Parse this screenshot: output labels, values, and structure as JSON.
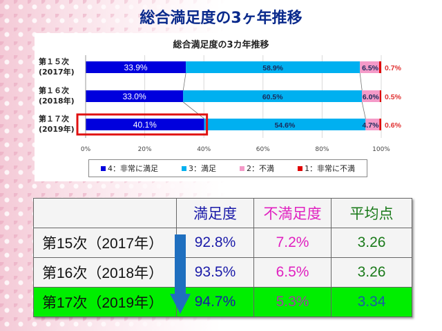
{
  "page_title": "総合満足度の3ヶ年推移",
  "colors": {
    "very_satisfied": "#0000dd",
    "satisfied": "#00b0f0",
    "dissatisfied": "#f49ac8",
    "very_dissatisfied": "#e00000"
  },
  "chart_data": {
    "type": "bar",
    "stacked": true,
    "orientation": "horizontal",
    "title": "総合満足度の3カ年推移",
    "categories": [
      "第１５次\n(2017年)",
      "第１６次\n(2018年)",
      "第１７次\n(2019年)"
    ],
    "category_lines": [
      [
        "第１５次",
        "(2017年)"
      ],
      [
        "第１６次",
        "(2018年)"
      ],
      [
        "第１７次",
        "(2019年)"
      ]
    ],
    "series": [
      {
        "name": "4：非常に満足",
        "values": [
          33.9,
          33.0,
          40.1
        ],
        "labels": [
          "33.9%",
          "33.0%",
          "40.1%"
        ]
      },
      {
        "name": "3：満足",
        "values": [
          58.9,
          60.5,
          54.6
        ],
        "labels": [
          "58.9%",
          "60.5%",
          "54.6%"
        ]
      },
      {
        "name": "2：不満",
        "values": [
          6.5,
          6.0,
          4.7
        ],
        "labels": [
          "6.5%",
          "6.0%",
          "4.7%"
        ]
      },
      {
        "name": "1：非常に不満",
        "values": [
          0.7,
          0.5,
          0.6
        ],
        "labels": [
          "0.7%",
          "0.5%",
          "0.6%"
        ]
      }
    ],
    "xticks": [
      "0%",
      "20%",
      "40%",
      "60%",
      "80%",
      "100%"
    ],
    "xlim": [
      0,
      100
    ],
    "legend": "bottom",
    "highlight_category": 2
  },
  "table": {
    "headers": [
      "",
      "満足度",
      "不満足度",
      "平均点"
    ],
    "rows": [
      {
        "label": "第15次（2017年）",
        "satisfaction": "92.8%",
        "dissatisfaction": "7.2%",
        "average": "3.26"
      },
      {
        "label": "第16次（2018年）",
        "satisfaction": "93.5%",
        "dissatisfaction": "6.5%",
        "average": "3.26"
      },
      {
        "label": "第17次（2019年）",
        "satisfaction": "94.7%",
        "dissatisfaction": "5.3%",
        "average": "3.34"
      }
    ]
  }
}
